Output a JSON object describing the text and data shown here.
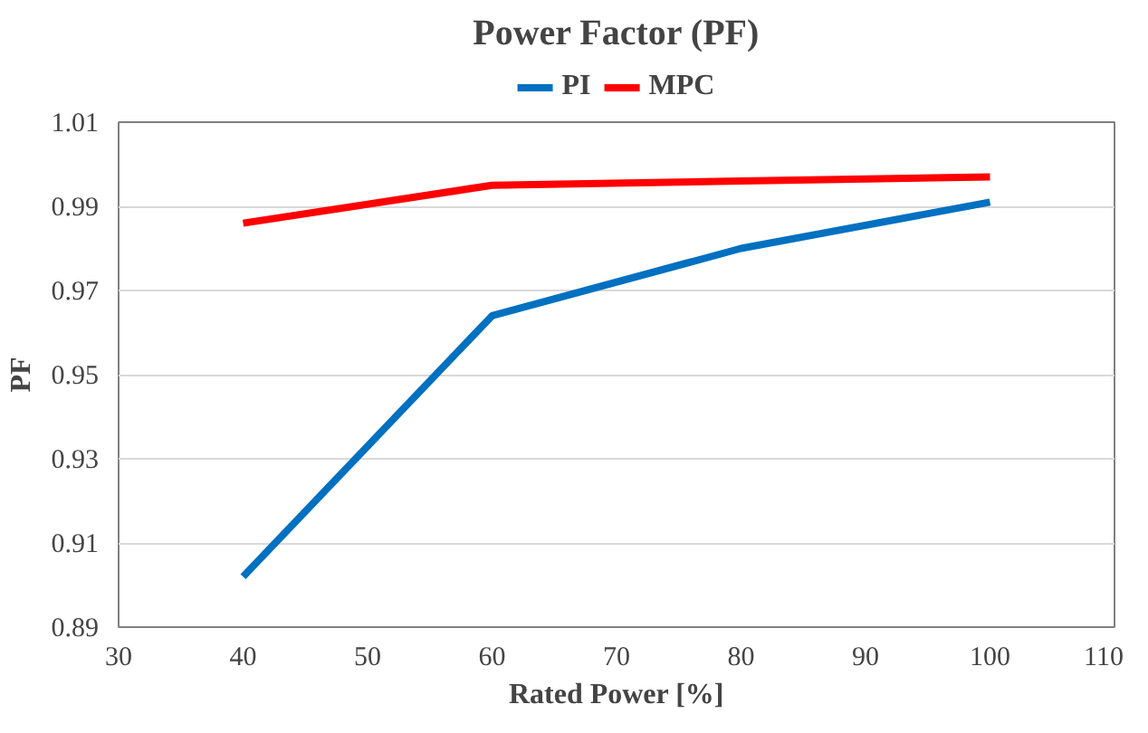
{
  "chart_data": {
    "type": "line",
    "title": "Power Factor (PF)",
    "xlabel": "Rated Power [%]",
    "ylabel": "PF",
    "x": [
      40,
      60,
      80,
      100
    ],
    "series": [
      {
        "name": "PI",
        "color": "#0070c0",
        "values": [
          0.902,
          0.964,
          0.98,
          0.991
        ]
      },
      {
        "name": "MPC",
        "color": "#ff0000",
        "values": [
          0.986,
          0.995,
          0.996,
          0.997
        ]
      }
    ],
    "xlim": [
      30,
      110
    ],
    "xticks": [
      30,
      40,
      50,
      60,
      70,
      80,
      90,
      100,
      110
    ],
    "ylim": [
      0.89,
      1.01
    ],
    "yticks": [
      0.89,
      0.91,
      0.93,
      0.95,
      0.97,
      0.99,
      1.01
    ],
    "grid": "y",
    "legend": "top",
    "marker": "none",
    "line_style": "solid"
  }
}
